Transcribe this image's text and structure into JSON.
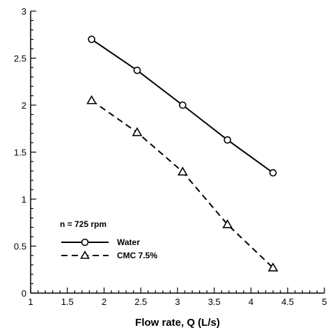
{
  "chart_data": {
    "type": "line",
    "title": "",
    "xlabel": "Flow rate, Q (L/s)",
    "ylabel": "",
    "xlim": [
      1,
      5
    ],
    "ylim": [
      0,
      3
    ],
    "xticks": [
      "1",
      "1.5",
      "2",
      "2.5",
      "3",
      "3.5",
      "4",
      "4.5",
      "5"
    ],
    "yticks": [
      "0",
      "0.5",
      "1",
      "1.5",
      "2",
      "2.5",
      "3"
    ],
    "annotation": "n = 725 rpm",
    "legend_position": "left-bottom",
    "grid": false,
    "series": [
      {
        "name": "Water",
        "marker": "circle",
        "line_style": "solid",
        "color": "#000000",
        "x": [
          1.83,
          2.45,
          3.07,
          3.68,
          4.3
        ],
        "y": [
          2.7,
          2.37,
          2.0,
          1.63,
          1.28
        ]
      },
      {
        "name": "CMC 7.5%",
        "marker": "triangle",
        "line_style": "dashed",
        "color": "#000000",
        "x": [
          1.83,
          2.45,
          3.07,
          3.68,
          4.3
        ],
        "y": [
          2.05,
          1.71,
          1.29,
          0.73,
          0.27
        ]
      }
    ]
  }
}
